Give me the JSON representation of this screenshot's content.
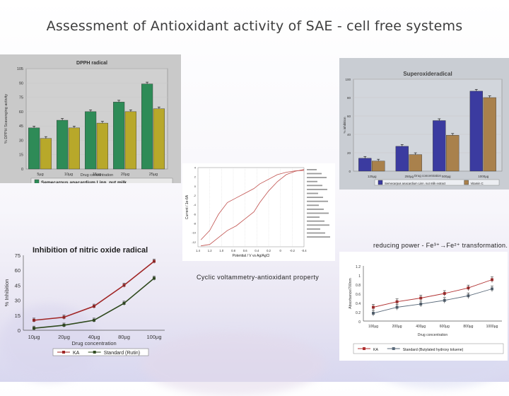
{
  "slide": {
    "title": "Assessment of Antioxidant activity of SAE - cell free systems"
  },
  "colors": {
    "accent_bar": "#2e5e9e",
    "kara": "#b03030",
    "standard": "#3f3f3f"
  },
  "chart_data": [
    {
      "id": "dpph",
      "type": "bar",
      "title": "DPPH radical",
      "xlabel": "Drug concentration",
      "ylabel": "% DPPH Scavenging activity",
      "ylim": [
        0,
        105
      ],
      "yticks": [
        0,
        15,
        30,
        45,
        60,
        75,
        90,
        105
      ],
      "categories": [
        "5µg",
        "10µg",
        "15µg",
        "20µg",
        "25µg"
      ],
      "series": [
        {
          "name": "Semecarpus anacardium Linn. nut milk..",
          "values": [
            43,
            51,
            60,
            70,
            89
          ]
        },
        {
          "name": "",
          "values": [
            32,
            43,
            48,
            60,
            63
          ]
        }
      ],
      "legend": "bottom"
    },
    {
      "id": "superoxide",
      "type": "bar",
      "title": "Superoxideradical",
      "xlabel": "Drug concentration",
      "ylabel": "% inhibition",
      "ylim": [
        0,
        100
      ],
      "yticks": [
        0,
        20,
        40,
        60,
        80,
        100
      ],
      "categories": [
        "125µg",
        "250µg",
        "500µg",
        "1000µg"
      ],
      "series": [
        {
          "name": "Semecarpus anacardium Linn. nut milk extract",
          "values": [
            14,
            27,
            55,
            87
          ]
        },
        {
          "name": "Vitamin C",
          "values": [
            11,
            18,
            39,
            80
          ]
        }
      ],
      "legend": "bottom"
    },
    {
      "id": "nitric-oxide",
      "type": "line",
      "title": "Inhibition of nitric oxide radical",
      "xlabel": "Drug concentration",
      "ylabel": "% Inhibition",
      "ylim": [
        0,
        75
      ],
      "yticks": [
        0,
        15,
        30,
        45,
        60,
        75
      ],
      "categories": [
        "10µg",
        "20µg",
        "40µg",
        "80µg",
        "100µg"
      ],
      "series": [
        {
          "name": "KA",
          "values": [
            10,
            13,
            24,
            45,
            69
          ]
        },
        {
          "name": "Standard  (Rutin)",
          "values": [
            2,
            5,
            10,
            27,
            52
          ]
        }
      ],
      "legend": "bottom"
    },
    {
      "id": "reducing-power",
      "type": "line",
      "title": "reducing power - Fe³⁺→Fe²⁺ transformation.",
      "xlabel": "Drug concentration",
      "ylabel": "Absorbance/700nm",
      "ylim": [
        0,
        1.2
      ],
      "yticks": [
        0,
        0.2,
        0.4,
        0.6,
        0.8,
        1,
        1.2
      ],
      "categories": [
        "100µg",
        "200µg",
        "400µg",
        "600µg",
        "800µg",
        "1000µg"
      ],
      "series": [
        {
          "name": "KA",
          "values": [
            0.3,
            0.42,
            0.5,
            0.6,
            0.72,
            0.9
          ]
        },
        {
          "name": "Standard (Butylated hydroxy toluene)",
          "values": [
            0.17,
            0.3,
            0.37,
            0.45,
            0.55,
            0.7
          ]
        }
      ],
      "legend": "bottom"
    },
    {
      "id": "voltammetry",
      "type": "line",
      "title": "Cyclic voltammetry-antioxidant property",
      "xlabel": "Potential / V vs Ag/AgCl",
      "ylabel": "Current / 1e-6A",
      "xticks": [
        "1.4",
        "1.2",
        "1.0",
        "0.8",
        "0.6",
        "0.4",
        "0.2",
        "0",
        "-0.2",
        "-0.4"
      ],
      "ylim": [
        -13,
        4
      ],
      "series": [
        {
          "name": "",
          "x": [
            1.35,
            1.2,
            1.05,
            0.9,
            0.75,
            0.6,
            0.45,
            0.35,
            0.2,
            0.05,
            -0.1,
            -0.25,
            -0.4
          ],
          "values": [
            -11.5,
            -9.5,
            -6,
            -3.5,
            -2.5,
            -1.5,
            -0.5,
            0.5,
            1.5,
            2.5,
            3,
            3.3,
            3.4
          ]
        },
        {
          "name": "",
          "x": [
            1.35,
            1.2,
            1.05,
            0.9,
            0.75,
            0.6,
            0.45,
            0.35,
            0.2,
            0.05,
            -0.1,
            -0.25,
            -0.4
          ],
          "values": [
            -12.8,
            -12.5,
            -11,
            -9.5,
            -8.5,
            -7,
            -5.5,
            -3.5,
            -1,
            1,
            2.5,
            3.2,
            3.6
          ]
        }
      ]
    }
  ]
}
